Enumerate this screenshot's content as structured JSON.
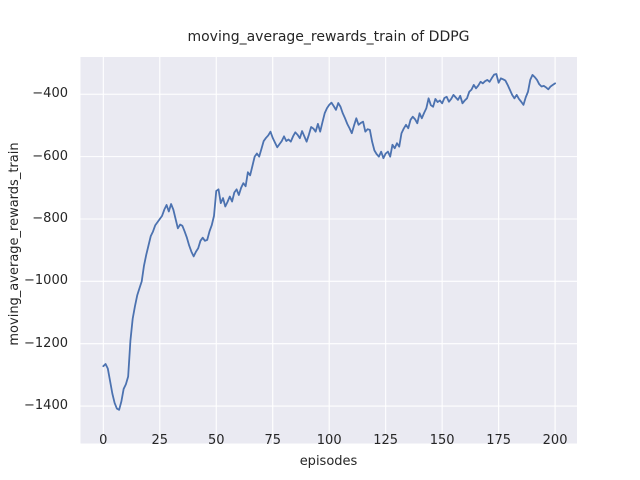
{
  "chart_data": {
    "type": "line",
    "title": "moving_average_rewards_train of DDPG",
    "xlabel": "episodes",
    "ylabel": "moving_average_rewards_train",
    "x_ticks": [
      0,
      25,
      50,
      75,
      100,
      125,
      150,
      175,
      200
    ],
    "y_ticks": [
      -400,
      -600,
      -800,
      -1000,
      -1200,
      -1400
    ],
    "xlim": [
      -10.1,
      209.7
    ],
    "ylim": [
      -1520,
      -280.5
    ],
    "grid": true,
    "legend": "none",
    "style": {
      "line_color": "#4c72b0",
      "axes_bg": "#eaeaf2",
      "grid_color": "#ffffff",
      "text_color": "#262626",
      "fig_bg": "#ffffff"
    },
    "series": [
      {
        "name": "moving_average_rewards_train",
        "x": [
          0,
          1,
          2,
          3,
          4,
          5,
          6,
          7,
          8,
          9,
          10,
          11,
          12,
          13,
          14,
          15,
          16,
          17,
          18,
          19,
          20,
          21,
          22,
          23,
          24,
          25,
          26,
          27,
          28,
          29,
          30,
          31,
          32,
          33,
          34,
          35,
          36,
          37,
          38,
          39,
          40,
          41,
          42,
          43,
          44,
          45,
          46,
          47,
          48,
          49,
          50,
          51,
          52,
          53,
          54,
          55,
          56,
          57,
          58,
          59,
          60,
          61,
          62,
          63,
          64,
          65,
          66,
          67,
          68,
          69,
          70,
          71,
          72,
          73,
          74,
          75,
          76,
          77,
          78,
          79,
          80,
          81,
          82,
          83,
          84,
          85,
          86,
          87,
          88,
          89,
          90,
          91,
          92,
          93,
          94,
          95,
          96,
          97,
          98,
          99,
          100,
          101,
          102,
          103,
          104,
          105,
          106,
          107,
          108,
          109,
          110,
          111,
          112,
          113,
          114,
          115,
          116,
          117,
          118,
          119,
          120,
          121,
          122,
          123,
          124,
          125,
          126,
          127,
          128,
          129,
          130,
          131,
          132,
          133,
          134,
          135,
          136,
          137,
          138,
          139,
          140,
          141,
          142,
          143,
          144,
          145,
          146,
          147,
          148,
          149,
          150,
          151,
          152,
          153,
          154,
          155,
          156,
          157,
          158,
          159,
          160,
          161,
          162,
          163,
          164,
          165,
          166,
          167,
          168,
          169,
          170,
          171,
          172,
          173,
          174,
          175,
          176,
          177,
          178,
          179,
          180,
          181,
          182,
          183,
          184,
          185,
          186,
          187,
          188,
          189,
          190,
          191,
          192,
          193,
          194,
          195,
          196,
          197,
          198,
          199,
          200
        ],
        "y": [
          -1272,
          -1265,
          -1280,
          -1320,
          -1360,
          -1390,
          -1408,
          -1412,
          -1385,
          -1345,
          -1330,
          -1305,
          -1190,
          -1120,
          -1080,
          -1045,
          -1022,
          -1000,
          -950,
          -915,
          -885,
          -855,
          -840,
          -820,
          -810,
          -800,
          -790,
          -770,
          -755,
          -776,
          -752,
          -770,
          -800,
          -830,
          -818,
          -822,
          -840,
          -860,
          -885,
          -905,
          -920,
          -905,
          -894,
          -870,
          -860,
          -870,
          -867,
          -840,
          -820,
          -790,
          -710,
          -705,
          -749,
          -733,
          -760,
          -745,
          -728,
          -744,
          -715,
          -705,
          -723,
          -700,
          -685,
          -695,
          -650,
          -660,
          -630,
          -600,
          -590,
          -600,
          -575,
          -550,
          -540,
          -532,
          -520,
          -540,
          -555,
          -570,
          -560,
          -550,
          -535,
          -550,
          -545,
          -552,
          -535,
          -522,
          -530,
          -541,
          -518,
          -535,
          -552,
          -530,
          -505,
          -510,
          -520,
          -495,
          -520,
          -490,
          -461,
          -445,
          -434,
          -427,
          -438,
          -450,
          -428,
          -440,
          -461,
          -477,
          -495,
          -509,
          -525,
          -500,
          -477,
          -498,
          -492,
          -488,
          -520,
          -512,
          -514,
          -552,
          -580,
          -592,
          -600,
          -584,
          -605,
          -590,
          -584,
          -600,
          -562,
          -573,
          -557,
          -568,
          -525,
          -510,
          -498,
          -509,
          -482,
          -472,
          -480,
          -493,
          -461,
          -477,
          -460,
          -445,
          -413,
          -435,
          -440,
          -415,
          -425,
          -420,
          -429,
          -412,
          -408,
          -424,
          -415,
          -402,
          -410,
          -418,
          -405,
          -429,
          -420,
          -413,
          -392,
          -385,
          -370,
          -381,
          -372,
          -360,
          -365,
          -358,
          -354,
          -360,
          -348,
          -337,
          -335,
          -363,
          -349,
          -352,
          -356,
          -370,
          -386,
          -402,
          -413,
          -402,
          -415,
          -424,
          -434,
          -410,
          -392,
          -354,
          -338,
          -345,
          -354,
          -368,
          -375,
          -373,
          -378,
          -384,
          -375,
          -370,
          -365
        ]
      }
    ]
  }
}
